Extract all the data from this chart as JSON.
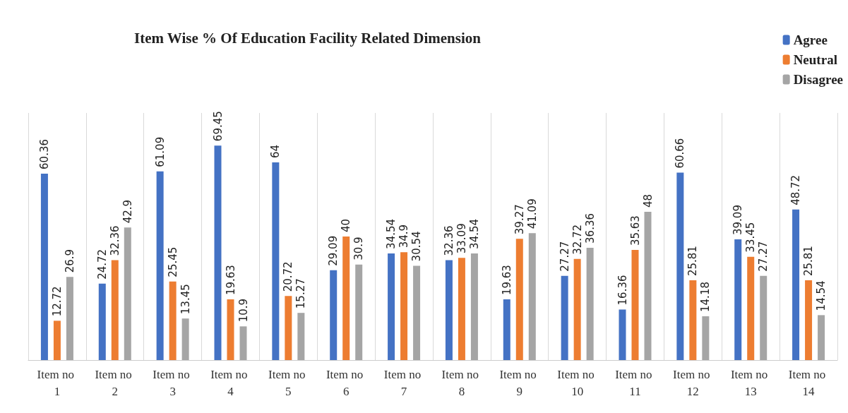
{
  "chart_data": {
    "type": "bar",
    "title": "Item Wise % Of Education Facility Related Dimension",
    "categories": [
      "Item no 1",
      "Item no 2",
      "Item no 3",
      "Item no 4",
      "Item no 5",
      "Item no 6",
      "Item no 7",
      "Item no 8",
      "Item no 9",
      "Item no 10",
      "Item no 11",
      "Item no 12",
      "Item no 13",
      "Item no 14"
    ],
    "series": [
      {
        "name": "Agree",
        "color": "#4472c4",
        "values": [
          60.36,
          24.72,
          61.09,
          69.45,
          64,
          29.09,
          34.54,
          32.36,
          19.63,
          27.27,
          16.36,
          60.66,
          39.09,
          48.72
        ]
      },
      {
        "name": "Neutral",
        "color": "#ed7d31",
        "values": [
          12.72,
          32.36,
          25.45,
          19.63,
          20.72,
          40,
          34.9,
          33.09,
          39.27,
          32.72,
          35.63,
          25.81,
          33.45,
          25.81
        ]
      },
      {
        "name": "Disagree",
        "color": "#a5a5a5",
        "values": [
          26.9,
          42.9,
          13.45,
          10.9,
          15.27,
          30.9,
          30.54,
          34.54,
          41.09,
          36.36,
          48,
          14.18,
          27.27,
          14.54
        ]
      }
    ],
    "data_labels": true,
    "grid": "x",
    "legend": "top right",
    "tick_labels": "x"
  }
}
